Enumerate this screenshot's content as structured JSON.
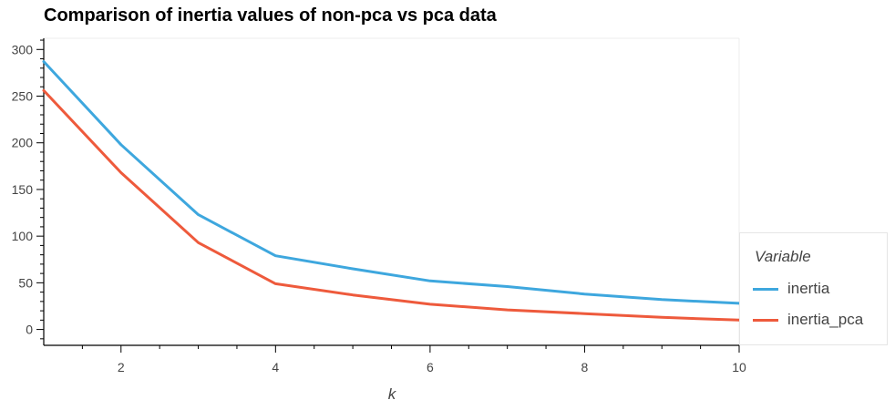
{
  "chart_data": {
    "type": "line",
    "title": "Comparison of inertia values of non-pca vs pca data",
    "xlabel": "k",
    "ylabel": "",
    "x": [
      1,
      2,
      3,
      4,
      5,
      6,
      7,
      8,
      9,
      10
    ],
    "xlim": [
      1,
      10
    ],
    "ylim": [
      -17,
      312
    ],
    "xticks": [
      2,
      4,
      6,
      8,
      10
    ],
    "yticks": [
      0,
      50,
      100,
      150,
      200,
      250,
      300
    ],
    "grid": false,
    "legend": {
      "title": "Variable",
      "placement": "right-bottom"
    },
    "series": [
      {
        "name": "inertia",
        "color": "#3EA7DE",
        "values": [
          287,
          198,
          123,
          79,
          65,
          52,
          46,
          38,
          32,
          28
        ]
      },
      {
        "name": "inertia_pca",
        "color": "#EE5A3C",
        "values": [
          256,
          168,
          93,
          49,
          37,
          27,
          21,
          17,
          13,
          10
        ]
      }
    ]
  }
}
